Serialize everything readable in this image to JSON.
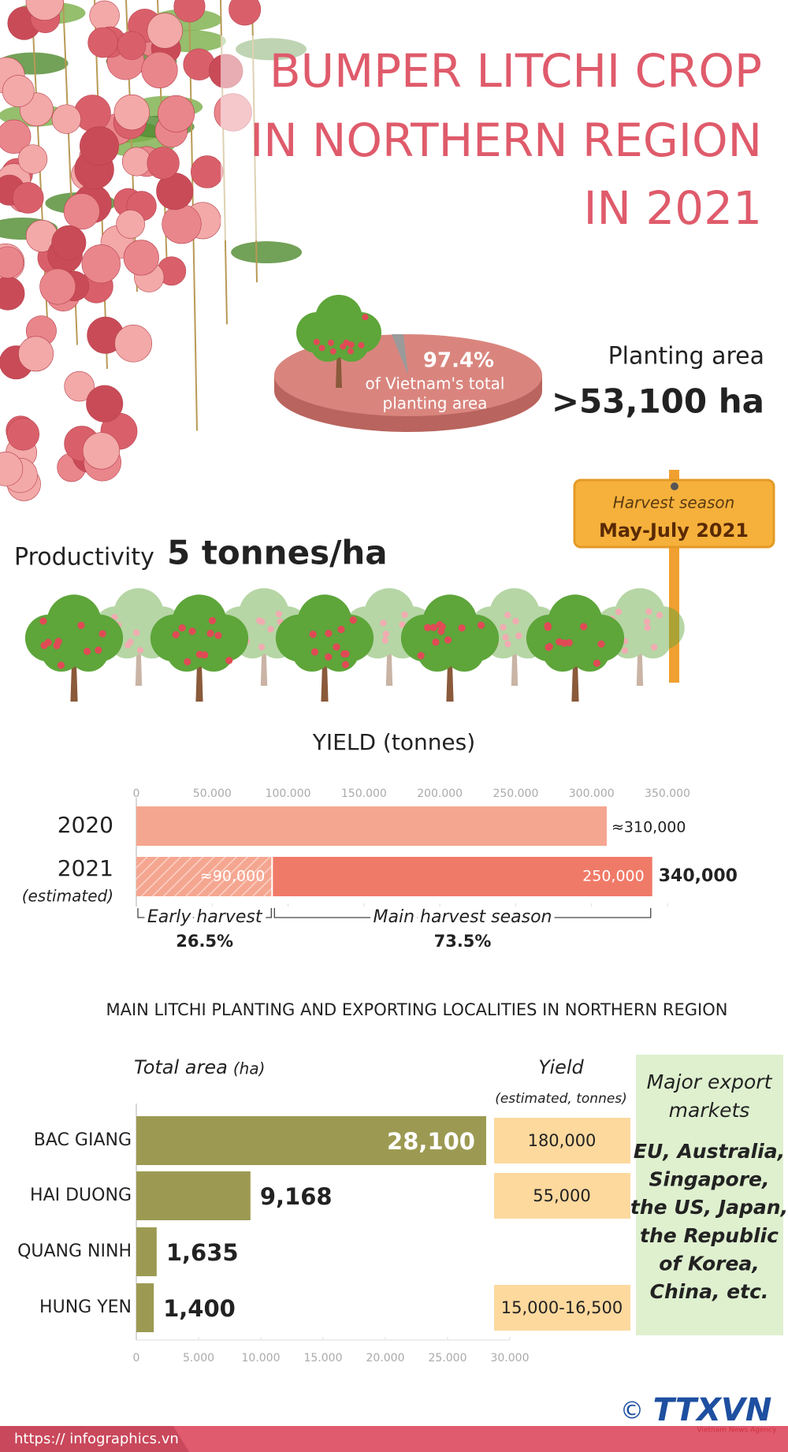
{
  "title_lines": [
    "BUMPER LITCHI CROP",
    "IN NORTHERN REGION",
    "IN 2021"
  ],
  "planting": {
    "share": "97.4%",
    "share_text_lines": [
      "of Vietnam's total",
      "planting area"
    ],
    "label": "Planting area",
    "value": ">53,100 ha"
  },
  "productivity": {
    "label": "Productivity",
    "value": "5 tonnes/ha"
  },
  "harvest": {
    "label": "Harvest season",
    "value": "May-July 2021"
  },
  "chart_data": [
    {
      "type": "bar",
      "orientation": "horizontal",
      "stacked": true,
      "title": "YIELD (tonnes)",
      "categories": [
        "2020",
        "2021"
      ],
      "category_notes": [
        null,
        "(estimated)"
      ],
      "series": [
        {
          "color": "#f5a690",
          "values": [
            310000,
            null
          ],
          "value_labels": [
            "≈310,000",
            null
          ]
        },
        {
          "name": "Early harvest",
          "share": "26.5%",
          "color": "#f07a68",
          "hatched": true,
          "values": [
            null,
            90000
          ],
          "value_labels": [
            null,
            "≈90,000"
          ]
        },
        {
          "name": "Main harvest season",
          "share": "73.5%",
          "color": "#f07a68",
          "values": [
            null,
            250000
          ],
          "value_labels": [
            null,
            "250,000"
          ]
        }
      ],
      "totals": [
        null,
        340000
      ],
      "total_labels": [
        null,
        "340,000"
      ],
      "xlim": [
        0,
        350000
      ],
      "xticks": [
        0,
        {
          "value": 50000,
          "label": "50.000"
        },
        {
          "value": 100000,
          "label": "100.000"
        },
        {
          "value": 150000,
          "label": "150.000"
        },
        {
          "value": 200000,
          "label": "200.000"
        },
        {
          "value": 250000,
          "label": "250.000"
        },
        {
          "value": 300000,
          "label": "300.000"
        },
        {
          "value": 350000,
          "label": "350.000"
        }
      ]
    },
    {
      "type": "bar",
      "orientation": "horizontal",
      "title": "MAIN LITCHI PLANTING AND EXPORTING LOCALITIES IN NORTHERN REGION",
      "xlabel": "Total area",
      "xlabel_unit": "(ha)",
      "categories": [
        "BAC GIANG",
        "HAI DUONG",
        "QUANG NINH",
        "HUNG YEN"
      ],
      "values": [
        28100,
        9168,
        1635,
        1400
      ],
      "value_labels": [
        "28,100",
        "9,168",
        "1,635",
        "1,400"
      ],
      "color": "#9c9a52",
      "xlim": [
        0,
        30000
      ],
      "xticks": [
        0,
        {
          "value": 5000,
          "label": "5.000"
        },
        {
          "value": 10000,
          "label": "10.000"
        },
        {
          "value": 15000,
          "label": "15.000"
        },
        {
          "value": 20000,
          "label": "20.000"
        },
        {
          "value": 25000,
          "label": "25.000"
        },
        {
          "value": 30000,
          "label": "30.000"
        }
      ],
      "yield_title": "Yield",
      "yield_subtitle": "(estimated, tonnes)",
      "yield": [
        "180,000",
        "55,000",
        null,
        "15,000-16,500"
      ],
      "yield_color": "#fdd99e",
      "markets_title_lines": [
        "Major export",
        "markets"
      ],
      "markets_lines": [
        "EU, Australia,",
        "Singapore,",
        "the US, Japan,",
        "the Republic",
        "of Korea,",
        "China, etc."
      ]
    }
  ],
  "footer": {
    "url": "https:// infographics.vn",
    "copyright": "©",
    "logo": "TTXVN",
    "agency": "Vietnam News Agency"
  }
}
